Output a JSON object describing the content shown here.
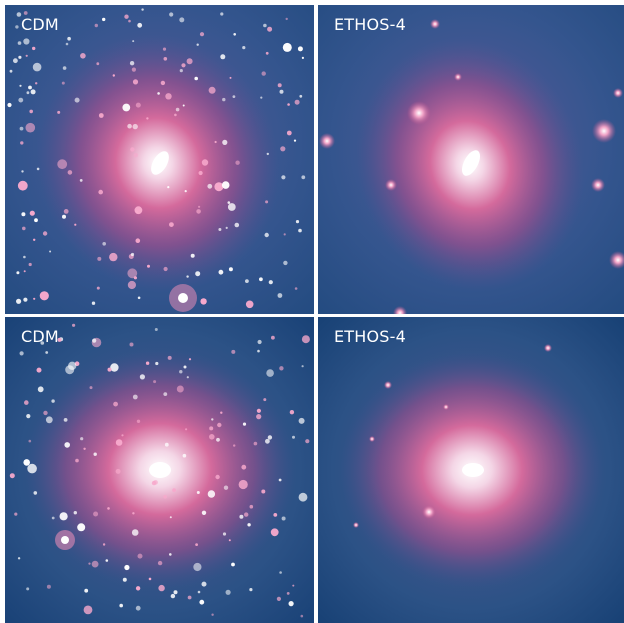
{
  "panels": [
    {
      "id": "top-left",
      "label": "CDM"
    },
    {
      "id": "top-right",
      "label": "ETHOS-4"
    },
    {
      "id": "bottom-left",
      "label": "CDM"
    },
    {
      "id": "bottom-right",
      "label": "ETHOS-4"
    }
  ],
  "colors": {
    "background": "#1f4a82",
    "halo_mid": "#c2588f",
    "halo_core": "#ffffff",
    "subhalo": "#f7a9cc",
    "label_text": "#ffffff"
  }
}
